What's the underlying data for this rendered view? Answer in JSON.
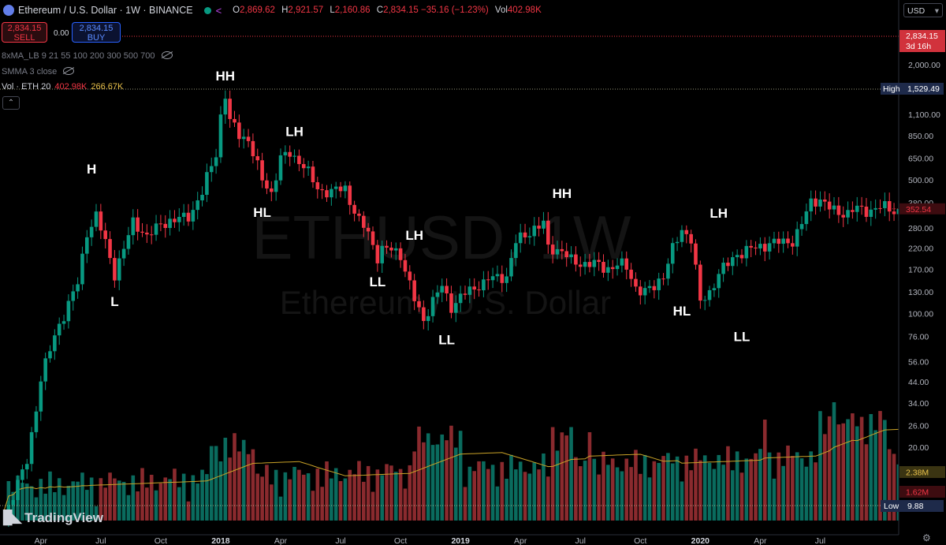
{
  "header": {
    "title": "Ethereum / U.S. Dollar · 1W · BINANCE",
    "ohlc": [
      {
        "k": "O",
        "v": "2,869.62"
      },
      {
        "k": "H",
        "v": "2,921.57"
      },
      {
        "k": "L",
        "v": "2,160.86"
      },
      {
        "k": "C",
        "v": "2,834.15 −35.16 (−1.23%)"
      },
      {
        "k": "Vol",
        "v": "402.98K"
      }
    ]
  },
  "trade": {
    "sell_price": "2,834.15",
    "sell_label": "SELL",
    "spread": "0.00",
    "buy_price": "2,834.15",
    "buy_label": "BUY"
  },
  "indicators": {
    "ma": "8xMA_LB 9 21 55 100 200 300 500 700",
    "smma": "SMMA 3 close",
    "vol_name": "Vol · ETH 20",
    "vol_a": "402.98K",
    "vol_b": "266.67K"
  },
  "currency": "USD",
  "brand": "TradingView",
  "colors": {
    "up": "#089981",
    "down": "#f23645",
    "bg": "#000000",
    "vol_ma": "#c9a227"
  },
  "chart_data": {
    "type": "candlestick",
    "scale": "log",
    "watermark_line1": "ETHUSD, 1W",
    "watermark_line2": "Ethereum / U.S. Dollar",
    "y_ticks": [
      2000,
      1500,
      1100,
      850,
      650,
      500,
      380,
      280,
      220,
      170,
      130,
      100,
      76,
      56,
      44,
      34,
      26,
      20,
      15
    ],
    "y_tick_labels": [
      "2,000.00",
      "1,500.00",
      "1,100.00",
      "850.00",
      "650.00",
      "500.00",
      "380.00",
      "280.00",
      "220.00",
      "170.00",
      "130.00",
      "100.00",
      "76.00",
      "56.00",
      "44.00",
      "34.00",
      "26.00",
      "20.00",
      "15.00"
    ],
    "x_labels": [
      "Apr",
      "Jul",
      "Oct",
      "2018",
      "Apr",
      "Jul",
      "Oct",
      "2019",
      "Apr",
      "Jul",
      "Oct",
      "2020",
      "Apr",
      "Jul"
    ],
    "x_label_weeks": [
      8,
      21,
      34,
      47,
      60,
      73,
      86,
      99,
      112,
      125,
      138,
      151,
      164,
      177
    ],
    "total_weeks": 195,
    "waypoints": [
      [
        0,
        8.5
      ],
      [
        5,
        17
      ],
      [
        8,
        45
      ],
      [
        12,
        90
      ],
      [
        16,
        140
      ],
      [
        18,
        270
      ],
      [
        20,
        330
      ],
      [
        22,
        230
      ],
      [
        24,
        160
      ],
      [
        25,
        190
      ],
      [
        28,
        300
      ],
      [
        31,
        250
      ],
      [
        34,
        300
      ],
      [
        37,
        300
      ],
      [
        40,
        330
      ],
      [
        43,
        420
      ],
      [
        46,
        700
      ],
      [
        47,
        1100
      ],
      [
        48,
        1400
      ],
      [
        49,
        1000
      ],
      [
        51,
        850
      ],
      [
        53,
        820
      ],
      [
        56,
        500
      ],
      [
        58,
        420
      ],
      [
        60,
        650
      ],
      [
        62,
        700
      ],
      [
        65,
        580
      ],
      [
        68,
        460
      ],
      [
        71,
        420
      ],
      [
        74,
        460
      ],
      [
        77,
        300
      ],
      [
        79,
        260
      ],
      [
        81,
        200
      ],
      [
        82,
        220
      ],
      [
        84,
        215
      ],
      [
        86,
        200
      ],
      [
        89,
        120
      ],
      [
        91,
        92
      ],
      [
        93,
        115
      ],
      [
        95,
        140
      ],
      [
        97,
        110
      ],
      [
        99,
        120
      ],
      [
        101,
        130
      ],
      [
        103,
        145
      ],
      [
        105,
        150
      ],
      [
        107,
        150
      ],
      [
        109,
        160
      ],
      [
        111,
        240
      ],
      [
        113,
        250
      ],
      [
        115,
        280
      ],
      [
        117,
        300
      ],
      [
        118,
        220
      ],
      [
        121,
        210
      ],
      [
        123,
        190
      ],
      [
        125,
        185
      ],
      [
        127,
        180
      ],
      [
        130,
        175
      ],
      [
        133,
        180
      ],
      [
        135,
        170
      ],
      [
        137,
        140
      ],
      [
        139,
        130
      ],
      [
        141,
        135
      ],
      [
        143,
        160
      ],
      [
        145,
        220
      ],
      [
        147,
        270
      ],
      [
        149,
        245
      ],
      [
        150,
        170
      ],
      [
        151,
        115
      ],
      [
        153,
        130
      ],
      [
        155,
        160
      ],
      [
        157,
        180
      ],
      [
        159,
        210
      ],
      [
        163,
        215
      ],
      [
        166,
        240
      ],
      [
        169,
        230
      ],
      [
        171,
        240
      ],
      [
        173,
        300
      ],
      [
        175,
        380
      ],
      [
        177,
        390
      ],
      [
        179,
        360
      ],
      [
        181,
        340
      ],
      [
        183,
        330
      ],
      [
        185,
        352
      ]
    ],
    "labels": [
      {
        "text": "H",
        "week": 19,
        "price": 510,
        "pos": "above"
      },
      {
        "text": "L",
        "week": 24,
        "price": 130,
        "pos": "below"
      },
      {
        "text": "HH",
        "week": 48,
        "price": 1560,
        "pos": "above"
      },
      {
        "text": "HL",
        "week": 56,
        "price": 380,
        "pos": "below"
      },
      {
        "text": "LH",
        "week": 63,
        "price": 800,
        "pos": "above"
      },
      {
        "text": "LL",
        "week": 81,
        "price": 165,
        "pos": "below"
      },
      {
        "text": "LH",
        "week": 89,
        "price": 230,
        "pos": "above"
      },
      {
        "text": "LL",
        "week": 96,
        "price": 82,
        "pos": "below"
      },
      {
        "text": "HH",
        "week": 121,
        "price": 380,
        "pos": "above"
      },
      {
        "text": "HL",
        "week": 147,
        "price": 116,
        "pos": "below"
      },
      {
        "text": "LH",
        "week": 155,
        "price": 300,
        "pos": "above"
      },
      {
        "text": "LL",
        "week": 160,
        "price": 85,
        "pos": "below"
      }
    ],
    "last_price": {
      "value": "2,834.15",
      "countdown": "3d 16h"
    },
    "current_tag": "352.54",
    "high": {
      "label": "High",
      "value": "1,529.49"
    },
    "low": {
      "label": "Low",
      "value": "9.88"
    },
    "volume_tags": [
      "2.38M",
      "1.62M"
    ]
  }
}
